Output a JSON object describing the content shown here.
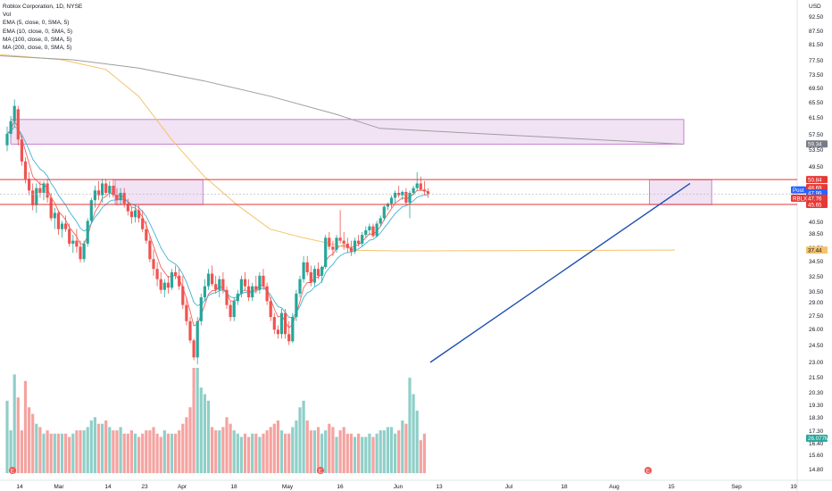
{
  "header": {
    "title": "Roblox Corporation, 1D, NYSE",
    "vol_label": "Vol",
    "indicators": [
      "EMA (5, close, 0, SMA, 5)",
      "EMA (10, close, 0, SMA, 5)",
      "MA (100, close, 0, SMA, 5)",
      "MA (200, close, 0, SMA, 5)"
    ]
  },
  "chart_data": {
    "type": "candlestick",
    "title": "Roblox Corporation, 1D, NYSE",
    "currency": "USD",
    "ylim": [
      14.0,
      105.0
    ],
    "y_scale": "log",
    "y_ticks": [
      "92.50",
      "87.50",
      "81.50",
      "77.50",
      "73.50",
      "69.50",
      "65.50",
      "61.50",
      "57.50",
      "53.50",
      "49.50",
      "45.50",
      "43.50",
      "40.50",
      "38.50",
      "36.50",
      "34.50",
      "32.50",
      "30.50",
      "29.00",
      "27.50",
      "26.00",
      "24.50",
      "23.00",
      "21.50",
      "20.30",
      "19.30",
      "18.30",
      "17.30",
      "16.40",
      "15.60",
      "14.80"
    ],
    "x_ticks": [
      "14",
      "Mar",
      "14",
      "23",
      "Apr",
      "18",
      "May",
      "16",
      "Jun",
      "13",
      "Jul",
      "18",
      "Aug",
      "15",
      "Sep",
      "19"
    ],
    "colors": {
      "up": "#26a69a",
      "down": "#ef5350",
      "up_vol": "#8fcfc8",
      "down_vol": "#f4a3a0",
      "ema5": "#f2625d",
      "ema10": "#3fb3d3",
      "ma100": "#f5c26b",
      "ma200": "#9e9e9e",
      "zone": "#e1bee7",
      "zone_border": "#ba68c8",
      "level": "#e53935",
      "trend": "#1e4fb4"
    },
    "candles": [
      [
        59.0,
        64.0,
        57.5,
        62.0
      ],
      [
        62.0,
        67.0,
        61.0,
        65.5
      ],
      [
        65.5,
        72.0,
        64.0,
        70.0
      ],
      [
        69.0,
        70.0,
        59.0,
        60.5
      ],
      [
        60.5,
        61.5,
        54.0,
        55.0
      ],
      [
        55.0,
        56.0,
        50.0,
        51.0
      ],
      [
        51.0,
        52.5,
        47.5,
        48.5
      ],
      [
        48.5,
        50.0,
        44.5,
        45.5
      ],
      [
        45.5,
        50.0,
        44.0,
        49.0
      ],
      [
        49.0,
        50.5,
        47.0,
        48.0
      ],
      [
        48.0,
        50.5,
        46.5,
        50.0
      ],
      [
        50.0,
        51.0,
        46.0,
        47.0
      ],
      [
        47.0,
        48.0,
        42.5,
        43.0
      ],
      [
        43.0,
        45.0,
        41.0,
        44.0
      ],
      [
        44.0,
        44.5,
        40.0,
        41.0
      ],
      [
        41.0,
        42.5,
        39.5,
        42.0
      ],
      [
        42.0,
        43.5,
        40.5,
        41.0
      ],
      [
        41.0,
        42.0,
        38.0,
        38.5
      ],
      [
        38.5,
        40.0,
        37.0,
        39.0
      ],
      [
        39.0,
        41.0,
        37.0,
        38.0
      ],
      [
        38.0,
        39.0,
        35.5,
        36.0
      ],
      [
        36.0,
        39.0,
        35.5,
        38.5
      ],
      [
        38.5,
        43.0,
        38.0,
        42.5
      ],
      [
        42.5,
        47.0,
        42.0,
        46.5
      ],
      [
        46.5,
        49.5,
        45.0,
        48.5
      ],
      [
        48.5,
        50.5,
        46.5,
        47.5
      ],
      [
        47.5,
        51.0,
        46.0,
        50.0
      ],
      [
        50.0,
        51.0,
        47.5,
        48.0
      ],
      [
        48.0,
        50.5,
        47.0,
        49.5
      ],
      [
        49.5,
        51.0,
        47.0,
        47.5
      ],
      [
        47.5,
        49.0,
        45.5,
        46.5
      ],
      [
        46.5,
        49.0,
        45.5,
        48.0
      ],
      [
        48.0,
        49.0,
        45.0,
        45.8
      ],
      [
        45.8,
        46.8,
        43.5,
        44.3
      ],
      [
        44.3,
        45.2,
        42.0,
        43.2
      ],
      [
        43.2,
        45.5,
        42.2,
        44.5
      ],
      [
        44.5,
        45.5,
        42.2,
        43.0
      ],
      [
        43.0,
        44.5,
        40.5,
        41.0
      ],
      [
        41.0,
        42.5,
        38.5,
        39.0
      ],
      [
        39.0,
        40.0,
        35.5,
        36.0
      ],
      [
        36.0,
        37.5,
        33.5,
        34.5
      ],
      [
        34.5,
        35.5,
        32.0,
        33.0
      ],
      [
        33.0,
        34.0,
        31.0,
        31.5
      ],
      [
        31.5,
        33.0,
        30.5,
        32.5
      ],
      [
        32.5,
        33.5,
        31.0,
        31.8
      ],
      [
        31.8,
        34.5,
        31.5,
        34.0
      ],
      [
        34.0,
        35.0,
        33.0,
        33.5
      ],
      [
        33.5,
        34.5,
        31.5,
        32.0
      ],
      [
        32.0,
        33.5,
        29.0,
        29.5
      ],
      [
        29.5,
        30.5,
        27.0,
        27.5
      ],
      [
        27.5,
        28.0,
        25.0,
        25.3
      ],
      [
        25.3,
        25.5,
        23.2,
        23.5
      ],
      [
        23.5,
        28.0,
        22.8,
        27.5
      ],
      [
        27.5,
        31.0,
        27.0,
        30.5
      ],
      [
        30.5,
        33.0,
        30.0,
        32.0
      ],
      [
        32.0,
        34.5,
        31.5,
        33.8
      ],
      [
        33.8,
        35.0,
        32.0,
        32.3
      ],
      [
        32.3,
        33.5,
        31.0,
        31.5
      ],
      [
        31.5,
        33.5,
        30.5,
        33.0
      ],
      [
        33.0,
        34.0,
        31.0,
        31.5
      ],
      [
        31.5,
        32.0,
        29.0,
        29.5
      ],
      [
        29.5,
        30.0,
        27.5,
        28.0
      ],
      [
        28.0,
        30.5,
        27.5,
        30.0
      ],
      [
        30.0,
        31.5,
        29.5,
        31.0
      ],
      [
        31.0,
        33.5,
        30.5,
        33.0
      ],
      [
        33.0,
        34.0,
        31.5,
        32.0
      ],
      [
        32.0,
        33.0,
        30.0,
        30.5
      ],
      [
        30.5,
        32.5,
        30.0,
        32.0
      ],
      [
        32.0,
        33.5,
        31.0,
        31.5
      ],
      [
        31.5,
        34.0,
        31.0,
        33.5
      ],
      [
        33.5,
        34.5,
        31.5,
        32.0
      ],
      [
        32.0,
        32.5,
        29.5,
        30.0
      ],
      [
        30.0,
        30.5,
        27.5,
        28.0
      ],
      [
        28.0,
        28.5,
        26.0,
        26.5
      ],
      [
        26.5,
        27.0,
        25.5,
        26.0
      ],
      [
        26.0,
        29.0,
        25.5,
        28.5
      ],
      [
        28.5,
        29.0,
        25.5,
        26.0
      ],
      [
        26.0,
        27.5,
        24.8,
        25.2
      ],
      [
        25.2,
        28.5,
        25.0,
        28.0
      ],
      [
        28.0,
        31.5,
        27.5,
        31.0
      ],
      [
        31.0,
        33.5,
        30.5,
        33.0
      ],
      [
        33.0,
        36.5,
        32.5,
        35.5
      ],
      [
        35.5,
        36.5,
        33.5,
        34.0
      ],
      [
        34.0,
        35.0,
        32.0,
        32.5
      ],
      [
        32.5,
        35.0,
        32.0,
        34.5
      ],
      [
        34.5,
        35.5,
        33.0,
        33.5
      ],
      [
        33.5,
        35.0,
        32.5,
        34.8
      ],
      [
        34.8,
        40.0,
        34.5,
        39.5
      ],
      [
        39.5,
        40.5,
        37.5,
        38.0
      ],
      [
        38.0,
        39.0,
        36.5,
        37.5
      ],
      [
        37.5,
        40.0,
        37.0,
        39.5
      ],
      [
        39.5,
        44.5,
        38.5,
        39.0
      ],
      [
        39.0,
        40.5,
        37.5,
        38.5
      ],
      [
        38.5,
        39.5,
        37.0,
        37.8
      ],
      [
        37.8,
        39.0,
        36.5,
        37.2
      ],
      [
        37.2,
        39.5,
        36.8,
        39.0
      ],
      [
        39.0,
        40.0,
        38.0,
        38.5
      ],
      [
        38.5,
        40.5,
        38.0,
        40.0
      ],
      [
        40.0,
        41.5,
        39.5,
        40.8
      ],
      [
        40.8,
        42.0,
        40.0,
        41.5
      ],
      [
        41.5,
        42.0,
        39.5,
        39.8
      ],
      [
        39.8,
        42.5,
        39.5,
        42.0
      ],
      [
        42.0,
        43.5,
        41.5,
        43.0
      ],
      [
        43.0,
        45.5,
        42.5,
        45.2
      ],
      [
        45.2,
        46.0,
        44.5,
        45.8
      ],
      [
        45.8,
        47.5,
        45.0,
        47.0
      ],
      [
        47.0,
        48.5,
        46.0,
        48.0
      ],
      [
        48.0,
        49.5,
        47.0,
        47.5
      ],
      [
        47.5,
        48.5,
        46.5,
        48.2
      ],
      [
        48.2,
        49.0,
        45.5,
        46.0
      ],
      [
        46.0,
        48.5,
        43.0,
        48.0
      ],
      [
        48.0,
        49.5,
        47.5,
        49.0
      ],
      [
        49.0,
        52.5,
        48.5,
        50.0
      ],
      [
        50.0,
        51.5,
        48.5,
        48.7
      ],
      [
        48.7,
        50.5,
        47.5,
        48.3
      ],
      [
        48.3,
        49.0,
        47.0,
        47.8
      ]
    ],
    "volume": [
      22,
      13,
      30,
      23,
      13,
      28,
      20,
      18,
      15,
      14,
      12,
      13,
      12,
      12,
      12,
      12,
      12,
      11,
      12,
      13,
      13,
      13,
      14,
      16,
      17,
      15,
      15,
      16,
      14,
      13,
      13,
      14,
      12,
      12,
      13,
      12,
      11,
      12,
      13,
      13,
      14,
      12,
      11,
      13,
      12,
      12,
      12,
      13,
      15,
      17,
      20,
      32,
      32,
      26,
      24,
      22,
      14,
      13,
      13,
      14,
      17,
      15,
      13,
      12,
      11,
      12,
      11,
      12,
      12,
      11,
      12,
      13,
      14,
      15,
      16,
      13,
      12,
      12,
      14,
      16,
      20,
      22,
      16,
      13,
      13,
      14,
      12,
      13,
      15,
      14,
      11,
      13,
      14,
      12,
      12,
      11,
      12,
      11,
      11,
      12,
      11,
      12,
      13,
      13,
      14,
      14,
      12,
      13,
      16,
      15,
      29,
      24,
      19,
      10,
      12
    ],
    "ema5": [],
    "ema10": [],
    "ma100": [
      [
        0,
        87.5
      ],
      [
        25,
        85.5
      ],
      [
        45,
        82.0
      ],
      [
        60,
        73.0
      ],
      [
        75,
        60.5
      ],
      [
        90,
        51.5
      ],
      [
        105,
        45.5
      ],
      [
        120,
        41.0
      ],
      [
        135,
        39.5
      ],
      [
        150,
        38.3
      ],
      [
        160,
        37.4
      ],
      [
        180,
        37.3
      ],
      [
        192,
        37.45
      ]
    ],
    "ma200": [
      [
        0,
        87.0
      ],
      [
        30,
        85.5
      ],
      [
        60,
        82.5
      ],
      [
        90,
        78.0
      ],
      [
        120,
        73.0
      ],
      [
        150,
        67.5
      ],
      [
        170,
        63.5
      ],
      [
        192,
        59.3
      ]
    ],
    "zones": [
      {
        "x0": 0,
        "x1": 192,
        "ylo": 59.3,
        "yhi": 66.0
      },
      {
        "x0": 30,
        "x1": 53,
        "ylo": 45.6,
        "yhi": 50.8
      },
      {
        "x0": 176,
        "x1": 192,
        "ylo": 45.6,
        "yhi": 50.8
      }
    ],
    "levels": [
      50.84,
      45.65
    ],
    "price_ref_line": 47.76,
    "trendline": [
      [
        120,
        23.0
      ],
      [
        197,
        50.0
      ]
    ],
    "price_tags": [
      {
        "value": "59.34",
        "color": "#787b86",
        "price": 59.34
      },
      {
        "value": "50.84",
        "color": "#e53935",
        "price": 50.84
      },
      {
        "value": "48.69",
        "color": "#e53935",
        "price": 49.1
      },
      {
        "value": "47.99",
        "color": "#2962ff",
        "price": 48.0
      },
      {
        "value": "47.76",
        "color": "#e53935",
        "price": 46.9
      },
      {
        "value": "45.65",
        "color": "#e53935",
        "price": 45.65
      },
      {
        "value": "37.44",
        "color": "#f5c26b",
        "price": 37.44,
        "dark": true
      },
      {
        "value": "26.077M",
        "color": "#26a69a",
        "price": 16.55
      }
    ],
    "side_labels": [
      {
        "text": "Post",
        "color": "#2962ff",
        "price": 48.6
      },
      {
        "text": "RBLX",
        "color": "#e53935",
        "price": 46.9
      }
    ]
  }
}
